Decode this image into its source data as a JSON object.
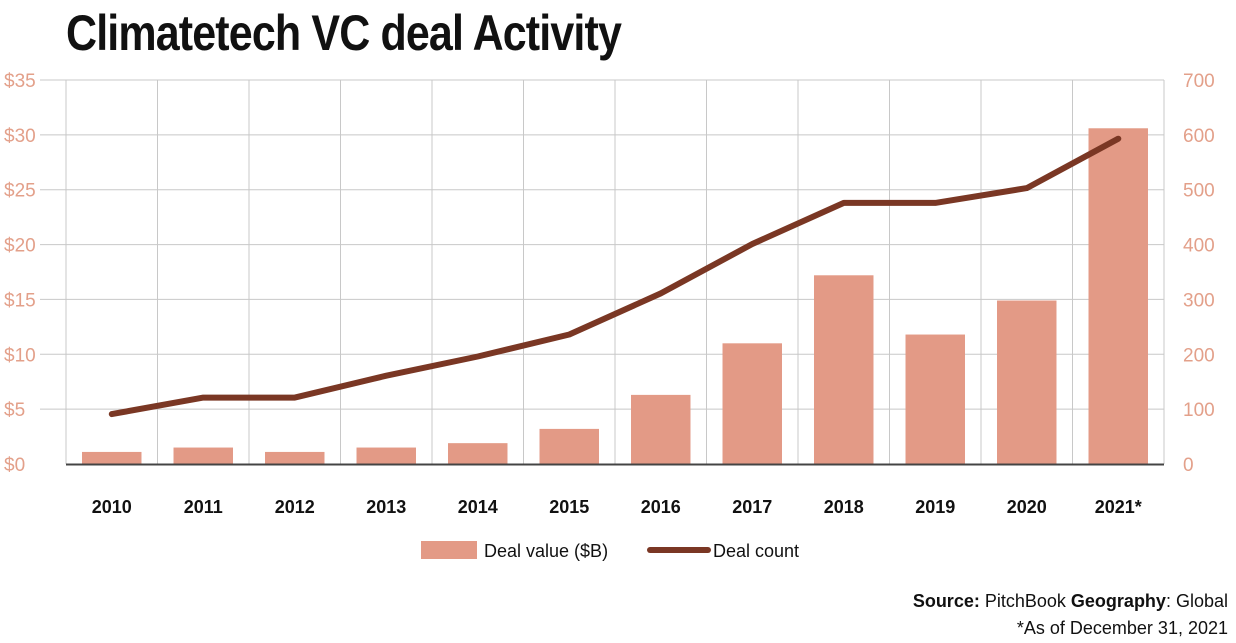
{
  "title": "Climatetech VC deal Activity",
  "chart_data": {
    "type": "bar",
    "title": "Climatetech VC deal Activity",
    "categories": [
      "2010",
      "2011",
      "2012",
      "2013",
      "2014",
      "2015",
      "2016",
      "2017",
      "2018",
      "2019",
      "2020",
      "2021*"
    ],
    "series": [
      {
        "name": "Deal value ($B)",
        "type": "bar",
        "axis": "left",
        "values": [
          1.1,
          1.5,
          1.1,
          1.5,
          1.9,
          3.2,
          6.3,
          11.0,
          17.2,
          11.8,
          14.9,
          30.6
        ]
      },
      {
        "name": "Deal count",
        "type": "line",
        "axis": "right",
        "values": [
          91,
          121,
          121,
          161,
          196,
          236,
          311,
          401,
          476,
          476,
          503,
          593
        ]
      }
    ],
    "y_left": {
      "ylim": [
        0,
        35
      ],
      "ticks": [
        "$0",
        "$5",
        "$10",
        "$15",
        "$20",
        "$25",
        "$30",
        "$35"
      ]
    },
    "y_right": {
      "ylim": [
        0,
        700
      ],
      "ticks": [
        "0",
        "100",
        "200",
        "300",
        "400",
        "500",
        "600",
        "700"
      ]
    },
    "grid": true,
    "legend": "bottom-center"
  },
  "legend": {
    "bar_label": "Deal value ($B)",
    "line_label": "Deal count"
  },
  "footer": {
    "source_label": "Source",
    "source_value": "PitchBook",
    "geo_label": "Geography",
    "geo_value": "Global",
    "note": "*As of December 31, 2021"
  },
  "colors": {
    "bar": "#e39a86",
    "line": "#7a3724",
    "axis_text": "#e3a08a",
    "grid": "#c8c8c8",
    "baseline": "#444444"
  }
}
